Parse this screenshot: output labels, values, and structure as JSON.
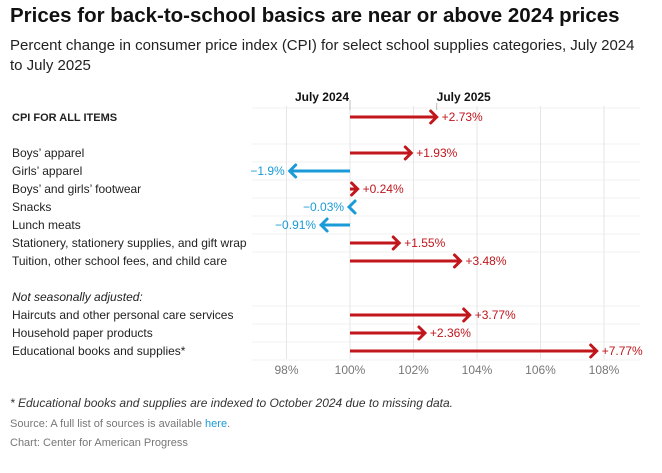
{
  "title": "Prices for back-to-school basics are near or above 2024 prices",
  "subtitle": "Percent change in consumer price index (CPI) for select school supplies categories, July 2024 to July 2025",
  "chart_data": {
    "type": "arrow",
    "baseline_label": "July 2024",
    "end_label": "July 2025",
    "xlim": [
      97,
      109
    ],
    "xticks": [
      98,
      100,
      102,
      104,
      106,
      108
    ],
    "xtick_labels": [
      "98%",
      "100%",
      "102%",
      "104%",
      "106%",
      "108%"
    ],
    "colors": {
      "up": "#c0161c",
      "down": "#1a9bd7"
    },
    "rows": [
      {
        "label": "CPI FOR ALL ITEMS",
        "value": 2.73,
        "value_label": "+2.73%",
        "style": "bold",
        "slot": 0
      },
      {
        "label": "Boys’ apparel",
        "value": 1.93,
        "value_label": "+1.93%",
        "slot": 2
      },
      {
        "label": "Girls’ apparel",
        "value": -1.9,
        "value_label": "−1.9%",
        "slot": 3
      },
      {
        "label": "Boys’ and girls’ footwear",
        "value": 0.24,
        "value_label": "+0.24%",
        "slot": 4
      },
      {
        "label": "Snacks",
        "value": -0.03,
        "value_label": "−0.03%",
        "slot": 5
      },
      {
        "label": "Lunch meats",
        "value": -0.91,
        "value_label": "−0.91%",
        "slot": 6
      },
      {
        "label": "Stationery, stationery supplies, and gift wrap",
        "value": 1.55,
        "value_label": "+1.55%",
        "slot": 7
      },
      {
        "label": "Tuition, other school fees, and child care",
        "value": 3.48,
        "value_label": "+3.48%",
        "slot": 8
      },
      {
        "label": "Not seasonally adjusted:",
        "value": null,
        "style": "italic",
        "slot": 10
      },
      {
        "label": "Haircuts and other personal care services",
        "value": 3.77,
        "value_label": "+3.77%",
        "slot": 11
      },
      {
        "label": "Household paper products",
        "value": 2.36,
        "value_label": "+2.36%",
        "slot": 12
      },
      {
        "label": "Educational books and supplies*",
        "value": 7.77,
        "value_label": "+7.77%",
        "slot": 13
      }
    ]
  },
  "footnote": "* Educational books and supplies are indexed to October 2024 due to missing data.",
  "source_prefix": "Source: A full list of sources is available ",
  "source_link": "here",
  "source_suffix": ".",
  "credit": "Chart: Center for American Progress"
}
